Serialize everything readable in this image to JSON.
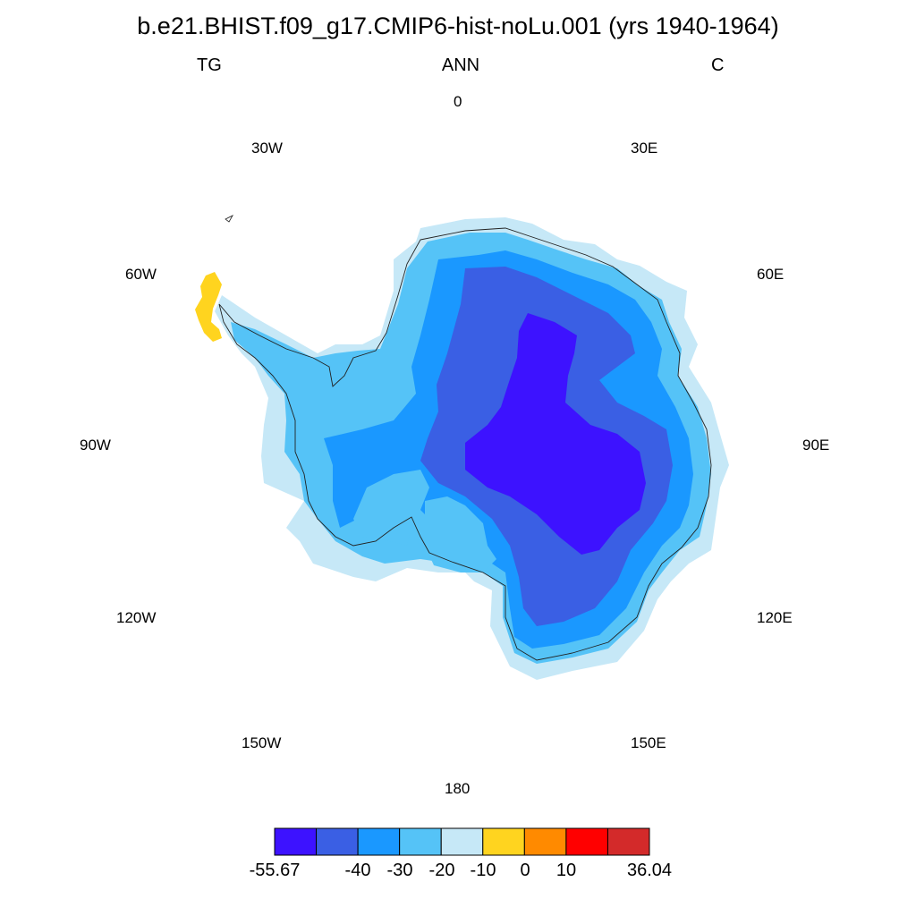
{
  "title": "b.e21.BHIST.f09_g17.CMIP6-hist-noLu.001 (yrs 1940-1964)",
  "subtitle": {
    "left": "TG",
    "center": "ANN",
    "right": "C"
  },
  "longitude_labels": {
    "lon_0": "0",
    "lon_30e": "30E",
    "lon_60e": "60E",
    "lon_90e": "90E",
    "lon_120e": "120E",
    "lon_150e": "150E",
    "lon_180": "180",
    "lon_150w": "150W",
    "lon_120w": "120W",
    "lon_90w": "90W",
    "lon_60w": "60W",
    "lon_30w": "30W"
  },
  "colorbar": {
    "colors": [
      "#3d12ff",
      "#3a5fe4",
      "#1a98ff",
      "#55c3f7",
      "#c6e8f7",
      "#ffd41f",
      "#ff8a00",
      "#ff0000",
      "#d32a2a"
    ],
    "tick_labels": {
      "min": "-55.67",
      "t_m40": "-40",
      "t_m30": "-30",
      "t_m20": "-20",
      "t_m10": "-10",
      "t_0": "0",
      "t_10": "10",
      "max": "36.04"
    }
  },
  "chart_data": {
    "type": "heatmap",
    "variable": "TG",
    "season": "ANN",
    "units": "C",
    "levels": [
      -50,
      -40,
      -30,
      -20,
      -10,
      0,
      10,
      20
    ],
    "data_range": [
      -55.67,
      36.04
    ],
    "region": "Antarctica (south polar stereographic)"
  }
}
